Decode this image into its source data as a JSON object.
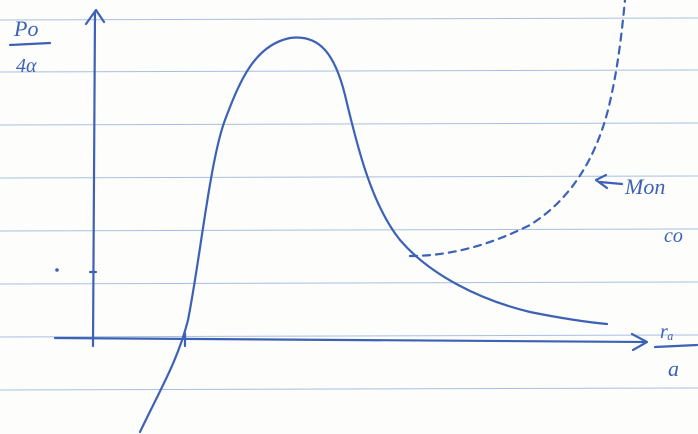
{
  "labels": {
    "y_numerator": "Po",
    "y_denominator": "4α",
    "x_numerator": "rₐ",
    "x_denominator": "a",
    "annotation": "Mon",
    "annotation_2": "co"
  }
}
